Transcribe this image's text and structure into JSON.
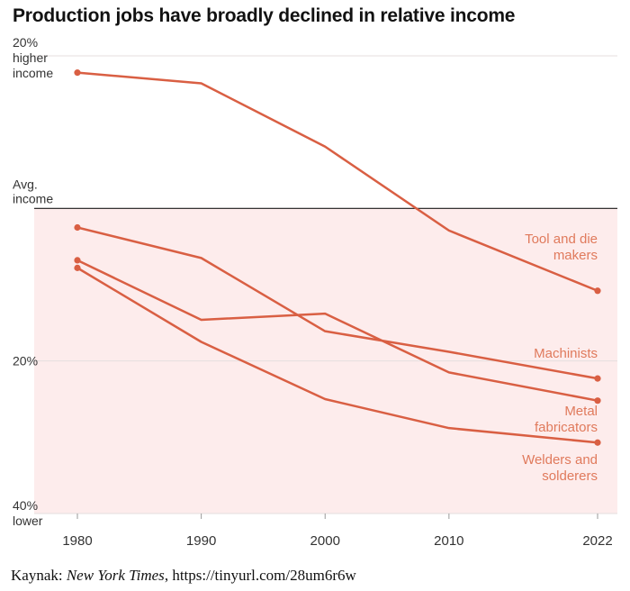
{
  "chart_data": {
    "type": "line",
    "title": "Production jobs have broadly declined in relative income",
    "x": [
      1980,
      1990,
      2000,
      2010,
      2022
    ],
    "x_tick_labels": [
      "1980",
      "1990",
      "2000",
      "2010",
      "2022"
    ],
    "y_unit": "percent relative to average income",
    "ylim": [
      -40,
      20
    ],
    "y_tick_labels": [
      {
        "value": 20,
        "lines": [
          "20%",
          "higher",
          "income"
        ]
      },
      {
        "value": 0,
        "lines": [
          "Avg.",
          "income"
        ]
      },
      {
        "value": -20,
        "lines": [
          "20%"
        ]
      },
      {
        "value": -40,
        "lines": [
          "40%",
          "lower"
        ]
      }
    ],
    "below_average_shaded": true,
    "grid": true,
    "series": [
      {
        "name": "Tool and die makers",
        "label_lines": [
          "Tool and die",
          "makers"
        ],
        "values": [
          17.8,
          16.4,
          8.1,
          -2.9,
          -10.8
        ]
      },
      {
        "name": "Machinists",
        "label_lines": [
          "Machinists"
        ],
        "values": [
          -2.5,
          -6.5,
          -16.1,
          -18.8,
          -22.3
        ]
      },
      {
        "name": "Metal fabricators",
        "label_lines": [
          "Metal",
          "fabricators"
        ],
        "values": [
          -6.8,
          -14.6,
          -13.8,
          -21.5,
          -25.2
        ]
      },
      {
        "name": "Welders and solderers",
        "label_lines": [
          "Welders and",
          "solderers"
        ],
        "values": [
          -7.8,
          -17.5,
          -25.0,
          -28.8,
          -30.7
        ]
      }
    ]
  },
  "source": {
    "prefix": "Kaynak: ",
    "publication": "New York Times",
    "suffix": ", https://tinyurl.com/28um6r6w"
  },
  "colors": {
    "line": "#d95f43",
    "label": "#e07a5c",
    "shade": "#fdecec",
    "axis_text": "#333333",
    "avg_line": "#1a1a1a"
  }
}
